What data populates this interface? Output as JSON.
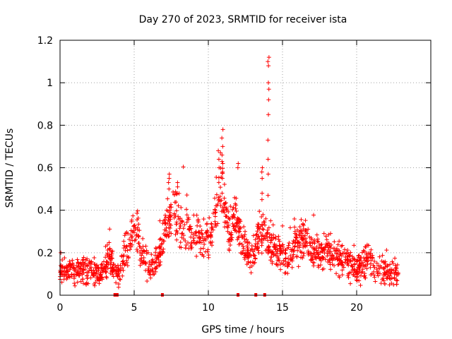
{
  "chart_data": {
    "type": "scatter",
    "title": "Day 270 of 2023, SRMTID for receiver ista",
    "xlabel": "GPS time / hours",
    "ylabel": "SRMTID / TECUs",
    "xlim": [
      0,
      25
    ],
    "ylim": [
      0,
      1.2
    ],
    "x_ticks": [
      0,
      5,
      10,
      15,
      20
    ],
    "x_tick_labels": [
      "0",
      "5",
      "10",
      "15",
      "20"
    ],
    "y_ticks": [
      0,
      0.2,
      0.4,
      0.6,
      0.8,
      1.0,
      1.2
    ],
    "y_tick_labels": [
      "0",
      "0.2",
      "0.4",
      "0.6",
      "0.8",
      "1",
      "1.2"
    ],
    "grid": true,
    "legend": "none",
    "series_color": "#ff0000",
    "marker": "plus",
    "profile": [
      [
        0.0,
        0.12
      ],
      [
        0.5,
        0.12
      ],
      [
        1.0,
        0.1
      ],
      [
        1.5,
        0.11
      ],
      [
        2.0,
        0.12
      ],
      [
        2.5,
        0.1
      ],
      [
        3.0,
        0.11
      ],
      [
        3.3,
        0.2
      ],
      [
        3.6,
        0.12
      ],
      [
        4.0,
        0.1
      ],
      [
        4.3,
        0.19
      ],
      [
        4.8,
        0.25
      ],
      [
        5.1,
        0.33
      ],
      [
        5.5,
        0.18
      ],
      [
        5.9,
        0.15
      ],
      [
        6.3,
        0.12
      ],
      [
        6.8,
        0.22
      ],
      [
        7.2,
        0.35
      ],
      [
        7.7,
        0.4
      ],
      [
        8.2,
        0.32
      ],
      [
        8.6,
        0.3
      ],
      [
        9.0,
        0.26
      ],
      [
        9.5,
        0.28
      ],
      [
        10.0,
        0.25
      ],
      [
        10.3,
        0.3
      ],
      [
        10.8,
        0.55
      ],
      [
        11.0,
        0.45
      ],
      [
        11.4,
        0.3
      ],
      [
        11.9,
        0.35
      ],
      [
        12.3,
        0.25
      ],
      [
        12.7,
        0.18
      ],
      [
        13.1,
        0.2
      ],
      [
        13.5,
        0.3
      ],
      [
        14.0,
        0.25
      ],
      [
        14.5,
        0.22
      ],
      [
        15.0,
        0.2
      ],
      [
        15.5,
        0.17
      ],
      [
        16.0,
        0.25
      ],
      [
        16.5,
        0.28
      ],
      [
        17.0,
        0.2
      ],
      [
        17.5,
        0.2
      ],
      [
        18.0,
        0.2
      ],
      [
        18.5,
        0.18
      ],
      [
        19.0,
        0.17
      ],
      [
        19.5,
        0.15
      ],
      [
        20.0,
        0.12
      ],
      [
        20.4,
        0.14
      ],
      [
        20.8,
        0.18
      ],
      [
        21.2,
        0.12
      ],
      [
        21.7,
        0.11
      ],
      [
        22.2,
        0.1
      ],
      [
        22.8,
        0.1
      ]
    ],
    "spread": 0.06,
    "spikes": [
      {
        "x": 10.95,
        "values": [
          0.78,
          0.74,
          0.7,
          0.66,
          0.62,
          0.58,
          0.55
        ]
      },
      {
        "x": 10.7,
        "values": [
          0.68,
          0.64,
          0.6
        ]
      },
      {
        "x": 14.05,
        "values": [
          1.12,
          1.1,
          1.08,
          1.0,
          0.97,
          0.92,
          0.85,
          0.73,
          0.64,
          0.57,
          0.47
        ]
      },
      {
        "x": 13.6,
        "values": [
          0.6,
          0.58,
          0.55,
          0.48,
          0.45
        ]
      },
      {
        "x": 12.0,
        "values": [
          0.62,
          0.6
        ]
      },
      {
        "x": 7.35,
        "values": [
          0.57,
          0.55,
          0.53,
          0.5
        ]
      },
      {
        "x": 7.9,
        "values": [
          0.53,
          0.51,
          0.48
        ]
      }
    ],
    "gap_markers": [
      3.7,
      3.85,
      6.9,
      12.0,
      13.2,
      13.8
    ],
    "point_count": 1500
  }
}
